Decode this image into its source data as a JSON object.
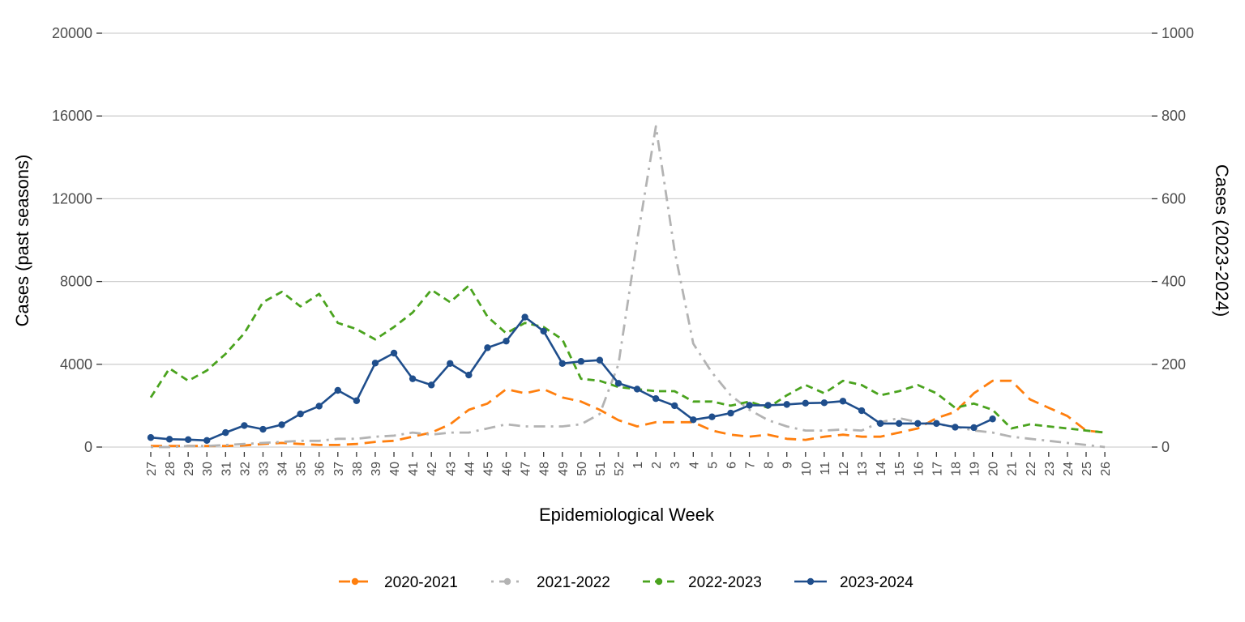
{
  "chart_data": {
    "type": "line",
    "xlabel": "Epidemiological Week",
    "ylabel": "Cases (past seasons)",
    "y2label": "Cases (2023-2024)",
    "ylim": [
      0,
      20000
    ],
    "y2lim": [
      0,
      1000
    ],
    "yticks": [
      0,
      4000,
      8000,
      12000,
      16000,
      20000
    ],
    "y2ticks": [
      0,
      200,
      400,
      600,
      800,
      1000
    ],
    "categories": [
      "27",
      "28",
      "29",
      "30",
      "31",
      "32",
      "33",
      "34",
      "35",
      "36",
      "37",
      "38",
      "39",
      "40",
      "41",
      "42",
      "43",
      "44",
      "45",
      "46",
      "47",
      "48",
      "49",
      "50",
      "51",
      "52",
      "1",
      "2",
      "3",
      "4",
      "5",
      "6",
      "7",
      "8",
      "9",
      "10",
      "11",
      "12",
      "13",
      "14",
      "15",
      "16",
      "17",
      "18",
      "19",
      "20",
      "21",
      "22",
      "23",
      "24",
      "25",
      "26"
    ],
    "grid": "horizontal",
    "legend_position": "bottom",
    "series": [
      {
        "name": "2020-2021",
        "axis": "left",
        "color": "#ff7f0e",
        "dash": "long-dash",
        "values": [
          50,
          50,
          50,
          50,
          50,
          80,
          150,
          200,
          150,
          100,
          100,
          150,
          250,
          300,
          500,
          700,
          1100,
          1800,
          2100,
          2800,
          2600,
          2800,
          2400,
          2200,
          1800,
          1300,
          1000,
          1200,
          1200,
          1200,
          800,
          600,
          500,
          600,
          400,
          350,
          500,
          600,
          500,
          500,
          700,
          900,
          1400,
          1700,
          2600,
          3200,
          3200,
          2300,
          1900,
          1500,
          800,
          700
        ]
      },
      {
        "name": "2021-2022",
        "axis": "left",
        "color": "#b3b3b3",
        "dash": "dot-dash",
        "values": [
          0,
          0,
          50,
          50,
          100,
          150,
          200,
          250,
          300,
          300,
          400,
          400,
          500,
          550,
          700,
          600,
          700,
          700,
          900,
          1100,
          1000,
          1000,
          1000,
          1100,
          1600,
          4000,
          10000,
          15500,
          9500,
          5000,
          3600,
          2500,
          1800,
          1300,
          1000,
          800,
          800,
          850,
          800,
          1200,
          1400,
          1200,
          1100,
          1000,
          800,
          700,
          500,
          400,
          300,
          200,
          100,
          0
        ]
      },
      {
        "name": "2022-2023",
        "axis": "left",
        "color": "#4aa31e",
        "dash": "short-dash",
        "values": [
          2400,
          3800,
          3200,
          3700,
          4500,
          5500,
          7000,
          7500,
          6800,
          7400,
          6000,
          5700,
          5200,
          5800,
          6500,
          7600,
          7000,
          7800,
          6300,
          5500,
          6000,
          5800,
          5200,
          3300,
          3200,
          2900,
          2800,
          2700,
          2700,
          2200,
          2200,
          2000,
          2200,
          1900,
          2500,
          3000,
          2600,
          3200,
          3000,
          2500,
          2700,
          3000,
          2600,
          1900,
          2100,
          1800,
          900,
          1100,
          1000,
          900,
          800,
          700
        ]
      },
      {
        "name": "2023-2024",
        "axis": "right",
        "color": "#1f4e8c",
        "dash": "solid",
        "values": [
          23,
          19,
          18,
          16,
          35,
          52,
          43,
          54,
          80,
          99,
          137,
          112,
          203,
          227,
          165,
          150,
          202,
          174,
          240,
          256,
          314,
          280,
          202,
          207,
          210,
          154,
          140,
          117,
          100,
          66,
          73,
          82,
          101,
          101,
          103,
          106,
          107,
          111,
          88,
          57,
          57,
          57,
          57,
          48,
          47,
          68,
          null,
          null,
          null,
          null,
          null,
          null
        ]
      }
    ]
  }
}
